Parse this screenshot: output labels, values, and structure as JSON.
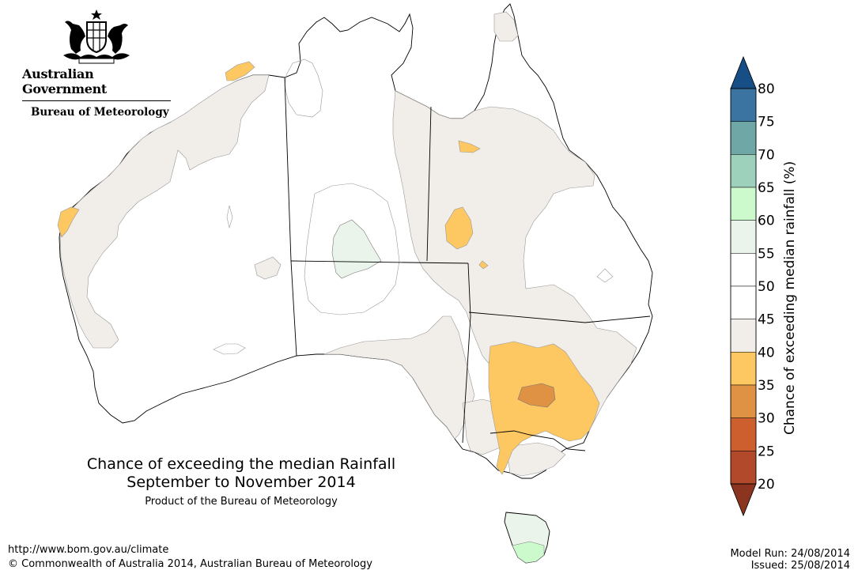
{
  "logo": {
    "government": "Australian Government",
    "bureau": "Bureau of Meteorology"
  },
  "title": {
    "line1": "Chance of exceeding the median Rainfall",
    "line2": "September to November 2014",
    "product": "Product of the Bureau of Meteorology"
  },
  "footer": {
    "url": "http://www.bom.gov.au/climate",
    "copyright": "© Commonwealth of Australia 2014, Australian Bureau of Meteorology",
    "model_run": "Model Run: 24/08/2014",
    "issued": "Issued: 25/08/2014"
  },
  "legend": {
    "title": "Chance of exceeding median rainfall (%)",
    "ticks": [
      "80",
      "75",
      "70",
      "65",
      "60",
      "55",
      "50",
      "45",
      "40",
      "35",
      "30",
      "25",
      "20"
    ],
    "colors": {
      "over_80": "#174e86",
      "75_80": "#3b74a0",
      "70_75": "#6fa6a6",
      "65_70": "#9ed1bc",
      "60_65": "#cdfacd",
      "55_60": "#eaf4ea",
      "50_55": "#ffffff",
      "45_50": "#ffffff",
      "40_45": "#f1ede8",
      "35_40": "#fdc862",
      "30_35": "#df9144",
      "25_30": "#cd5f2e",
      "20_25": "#b1492a",
      "under_20": "#8b341f"
    }
  }
}
